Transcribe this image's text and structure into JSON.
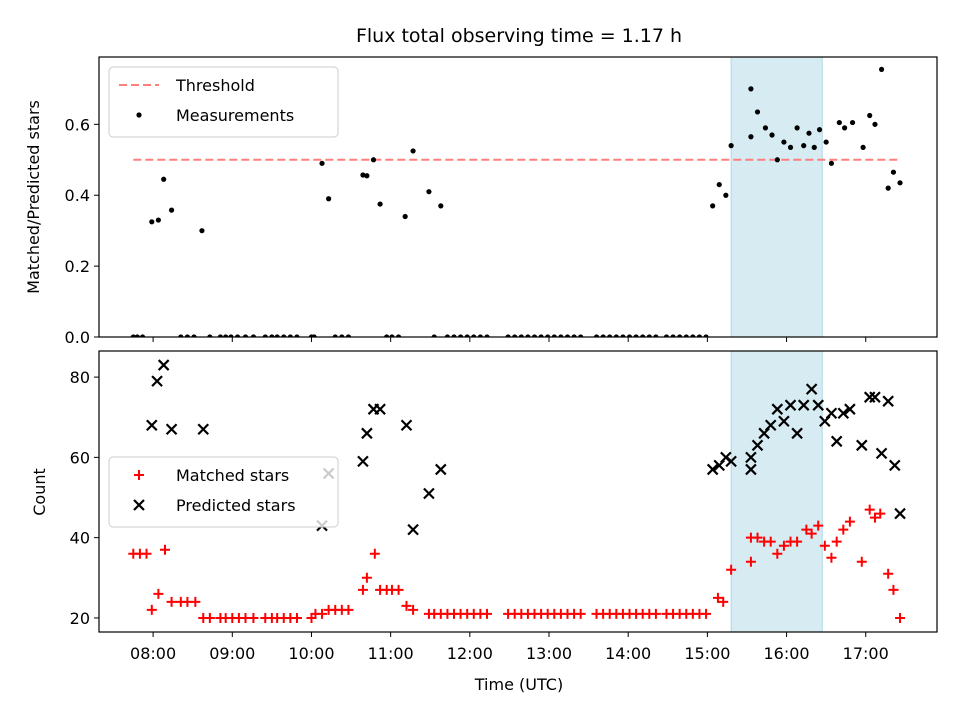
{
  "chart_data": [
    {
      "type": "scatter",
      "title": "Flux total observing time = 1.17 h",
      "xlabel": "",
      "ylabel": "Matched/Predicted stars",
      "xlim": [
        "07:19",
        "17:54"
      ],
      "ylim": [
        0,
        0.79
      ],
      "y_ticks": [
        "0.0",
        "0.2",
        "0.4",
        "0.6"
      ],
      "highlight_span": [
        "15:18",
        "16:27"
      ],
      "legend_position": "upper left",
      "lines": [
        {
          "name": "Threshold",
          "y": 0.5,
          "x_range": [
            "07:45",
            "17:27"
          ],
          "style": "dashed",
          "color": "#ff7f7f"
        }
      ],
      "series": [
        {
          "name": "Measurements",
          "marker": "dot",
          "color": "#000000",
          "points": [
            [
              "07:45",
              0
            ],
            [
              "07:48",
              0
            ],
            [
              "07:52",
              0
            ],
            [
              "07:59",
              0.325
            ],
            [
              "08:04",
              0.33
            ],
            [
              "08:08",
              0.445
            ],
            [
              "08:14",
              0.358
            ],
            [
              "08:21",
              0
            ],
            [
              "08:26",
              0
            ],
            [
              "08:31",
              0
            ],
            [
              "08:37",
              0.3
            ],
            [
              "08:43",
              0
            ],
            [
              "08:51",
              0
            ],
            [
              "08:55",
              0
            ],
            [
              "08:59",
              0
            ],
            [
              "09:04",
              0
            ],
            [
              "09:10",
              0
            ],
            [
              "09:16",
              0
            ],
            [
              "09:25",
              0
            ],
            [
              "09:30",
              0
            ],
            [
              "09:34",
              0
            ],
            [
              "09:39",
              0
            ],
            [
              "09:44",
              0
            ],
            [
              "09:49",
              0
            ],
            [
              "10:00",
              0
            ],
            [
              "10:02",
              0
            ],
            [
              "10:08",
              0.49
            ],
            [
              "10:13",
              0.39
            ],
            [
              "10:18",
              0
            ],
            [
              "10:23",
              0
            ],
            [
              "10:28",
              0
            ],
            [
              "10:39",
              0.457
            ],
            [
              "10:42",
              0.455
            ],
            [
              "10:47",
              0.5
            ],
            [
              "10:52",
              0.375
            ],
            [
              "10:57",
              0
            ],
            [
              "11:01",
              0
            ],
            [
              "11:06",
              0
            ],
            [
              "11:11",
              0.34
            ],
            [
              "11:17",
              0.525
            ],
            [
              "11:29",
              0.41
            ],
            [
              "11:33",
              0
            ],
            [
              "11:38",
              0.37
            ],
            [
              "11:43",
              0
            ],
            [
              "11:48",
              0
            ],
            [
              "11:53",
              0
            ],
            [
              "11:58",
              0
            ],
            [
              "12:03",
              0
            ],
            [
              "12:08",
              0
            ],
            [
              "12:13",
              0
            ],
            [
              "12:29",
              0
            ],
            [
              "12:34",
              0
            ],
            [
              "12:39",
              0
            ],
            [
              "12:44",
              0
            ],
            [
              "12:49",
              0
            ],
            [
              "12:54",
              0
            ],
            [
              "12:59",
              0
            ],
            [
              "13:04",
              0
            ],
            [
              "13:09",
              0
            ],
            [
              "13:14",
              0
            ],
            [
              "13:19",
              0
            ],
            [
              "13:24",
              0
            ],
            [
              "13:36",
              0
            ],
            [
              "13:41",
              0
            ],
            [
              "13:46",
              0
            ],
            [
              "13:51",
              0
            ],
            [
              "13:56",
              0
            ],
            [
              "14:01",
              0
            ],
            [
              "14:06",
              0
            ],
            [
              "14:11",
              0
            ],
            [
              "14:16",
              0
            ],
            [
              "14:21",
              0
            ],
            [
              "14:29",
              0
            ],
            [
              "14:34",
              0
            ],
            [
              "14:39",
              0
            ],
            [
              "14:44",
              0
            ],
            [
              "14:49",
              0
            ],
            [
              "14:54",
              0
            ],
            [
              "14:59",
              0
            ],
            [
              "15:04",
              0.37
            ],
            [
              "15:09",
              0.43
            ],
            [
              "15:14",
              0.4
            ],
            [
              "15:18",
              0.54
            ],
            [
              "15:33",
              0.565
            ],
            [
              "15:33",
              0.7
            ],
            [
              "15:38",
              0.635
            ],
            [
              "15:44",
              0.59
            ],
            [
              "15:49",
              0.57
            ],
            [
              "15:53",
              0.5
            ],
            [
              "15:58",
              0.55
            ],
            [
              "16:03",
              0.535
            ],
            [
              "16:08",
              0.59
            ],
            [
              "16:13",
              0.54
            ],
            [
              "16:17",
              0.575
            ],
            [
              "16:21",
              0.535
            ],
            [
              "16:25",
              0.585
            ],
            [
              "16:30",
              0.55
            ],
            [
              "16:34",
              0.49
            ],
            [
              "16:40",
              0.605
            ],
            [
              "16:44",
              0.59
            ],
            [
              "16:50",
              0.605
            ],
            [
              "16:58",
              0.535
            ],
            [
              "17:03",
              0.625
            ],
            [
              "17:07",
              0.6
            ],
            [
              "17:12",
              0.755
            ],
            [
              "17:17",
              0.42
            ],
            [
              "17:21",
              0.465
            ],
            [
              "17:26",
              0.435
            ]
          ]
        }
      ]
    },
    {
      "type": "scatter",
      "title": "",
      "xlabel": "Time (UTC)",
      "ylabel": "Count",
      "xlim": [
        "07:19",
        "17:54"
      ],
      "ylim": [
        16.5,
        86.5
      ],
      "x_ticks": [
        "08:00",
        "09:00",
        "10:00",
        "11:00",
        "12:00",
        "13:00",
        "14:00",
        "15:00",
        "16:00",
        "17:00"
      ],
      "y_ticks": [
        "20",
        "40",
        "60",
        "80"
      ],
      "highlight_span": [
        "15:18",
        "16:27"
      ],
      "legend_position": "center left",
      "series": [
        {
          "name": "Matched stars",
          "marker": "plus",
          "color": "#ff0000",
          "points": [
            [
              "07:45",
              36
            ],
            [
              "07:50",
              36
            ],
            [
              "07:55",
              36
            ],
            [
              "07:59",
              22
            ],
            [
              "08:04",
              26
            ],
            [
              "08:09",
              37
            ],
            [
              "08:14",
              24
            ],
            [
              "08:21",
              24
            ],
            [
              "08:26",
              24
            ],
            [
              "08:32",
              24
            ],
            [
              "08:38",
              20
            ],
            [
              "08:43",
              20
            ],
            [
              "08:51",
              20
            ],
            [
              "08:55",
              20
            ],
            [
              "09:00",
              20
            ],
            [
              "09:05",
              20
            ],
            [
              "09:10",
              20
            ],
            [
              "09:16",
              20
            ],
            [
              "09:25",
              20
            ],
            [
              "09:30",
              20
            ],
            [
              "09:34",
              20
            ],
            [
              "09:39",
              20
            ],
            [
              "09:44",
              20
            ],
            [
              "09:49",
              20
            ],
            [
              "10:00",
              20
            ],
            [
              "10:03",
              21
            ],
            [
              "10:08",
              21
            ],
            [
              "10:13",
              22
            ],
            [
              "10:18",
              22
            ],
            [
              "10:23",
              22
            ],
            [
              "10:28",
              22
            ],
            [
              "10:39",
              27
            ],
            [
              "10:42",
              30
            ],
            [
              "10:48",
              36
            ],
            [
              "10:52",
              27
            ],
            [
              "10:57",
              27
            ],
            [
              "11:01",
              27
            ],
            [
              "11:06",
              27
            ],
            [
              "11:12",
              23
            ],
            [
              "11:17",
              22
            ],
            [
              "11:29",
              21
            ],
            [
              "11:33",
              21
            ],
            [
              "11:38",
              21
            ],
            [
              "11:43",
              21
            ],
            [
              "11:48",
              21
            ],
            [
              "11:53",
              21
            ],
            [
              "11:58",
              21
            ],
            [
              "12:03",
              21
            ],
            [
              "12:08",
              21
            ],
            [
              "12:13",
              21
            ],
            [
              "12:29",
              21
            ],
            [
              "12:34",
              21
            ],
            [
              "12:39",
              21
            ],
            [
              "12:44",
              21
            ],
            [
              "12:49",
              21
            ],
            [
              "12:54",
              21
            ],
            [
              "12:59",
              21
            ],
            [
              "13:04",
              21
            ],
            [
              "13:09",
              21
            ],
            [
              "13:14",
              21
            ],
            [
              "13:19",
              21
            ],
            [
              "13:24",
              21
            ],
            [
              "13:36",
              21
            ],
            [
              "13:41",
              21
            ],
            [
              "13:46",
              21
            ],
            [
              "13:51",
              21
            ],
            [
              "13:56",
              21
            ],
            [
              "14:01",
              21
            ],
            [
              "14:06",
              21
            ],
            [
              "14:11",
              21
            ],
            [
              "14:16",
              21
            ],
            [
              "14:21",
              21
            ],
            [
              "14:29",
              21
            ],
            [
              "14:34",
              21
            ],
            [
              "14:39",
              21
            ],
            [
              "14:44",
              21
            ],
            [
              "14:49",
              21
            ],
            [
              "14:54",
              21
            ],
            [
              "14:59",
              21
            ],
            [
              "15:08",
              25
            ],
            [
              "15:12",
              24
            ],
            [
              "15:18",
              32
            ],
            [
              "15:33",
              34
            ],
            [
              "15:33",
              40
            ],
            [
              "15:38",
              40
            ],
            [
              "15:43",
              39
            ],
            [
              "15:48",
              39
            ],
            [
              "15:53",
              36
            ],
            [
              "15:58",
              38
            ],
            [
              "16:03",
              39
            ],
            [
              "16:08",
              39
            ],
            [
              "16:15",
              42
            ],
            [
              "16:19",
              41
            ],
            [
              "16:24",
              43
            ],
            [
              "16:29",
              38
            ],
            [
              "16:34",
              35
            ],
            [
              "16:38",
              39
            ],
            [
              "16:43",
              42
            ],
            [
              "16:48",
              44
            ],
            [
              "16:57",
              34
            ],
            [
              "17:03",
              47
            ],
            [
              "17:07",
              45
            ],
            [
              "17:11",
              46
            ],
            [
              "17:17",
              31
            ],
            [
              "17:21",
              27
            ],
            [
              "17:26",
              20
            ]
          ]
        },
        {
          "name": "Predicted stars",
          "marker": "x",
          "color": "#000000",
          "points": [
            [
              "07:59",
              68
            ],
            [
              "08:03",
              79
            ],
            [
              "08:08",
              83
            ],
            [
              "08:14",
              67
            ],
            [
              "08:38",
              67
            ],
            [
              "10:08",
              43
            ],
            [
              "10:13",
              56
            ],
            [
              "10:39",
              59
            ],
            [
              "10:42",
              66
            ],
            [
              "10:47",
              72
            ],
            [
              "10:52",
              72
            ],
            [
              "11:12",
              68
            ],
            [
              "11:17",
              42
            ],
            [
              "11:29",
              51
            ],
            [
              "11:38",
              57
            ],
            [
              "15:04",
              57
            ],
            [
              "15:09",
              58
            ],
            [
              "15:14",
              60
            ],
            [
              "15:18",
              59
            ],
            [
              "15:33",
              57
            ],
            [
              "15:33",
              60
            ],
            [
              "15:38",
              63
            ],
            [
              "15:43",
              66
            ],
            [
              "15:48",
              68
            ],
            [
              "15:53",
              72
            ],
            [
              "15:58",
              69
            ],
            [
              "16:03",
              73
            ],
            [
              "16:08",
              66
            ],
            [
              "16:13",
              73
            ],
            [
              "16:19",
              77
            ],
            [
              "16:24",
              73
            ],
            [
              "16:29",
              69
            ],
            [
              "16:34",
              71
            ],
            [
              "16:38",
              64
            ],
            [
              "16:43",
              71
            ],
            [
              "16:48",
              72
            ],
            [
              "16:57",
              63
            ],
            [
              "17:03",
              75
            ],
            [
              "17:07",
              75
            ],
            [
              "17:12",
              61
            ],
            [
              "17:17",
              74
            ],
            [
              "17:22",
              58
            ],
            [
              "17:26",
              46
            ]
          ]
        }
      ]
    }
  ]
}
